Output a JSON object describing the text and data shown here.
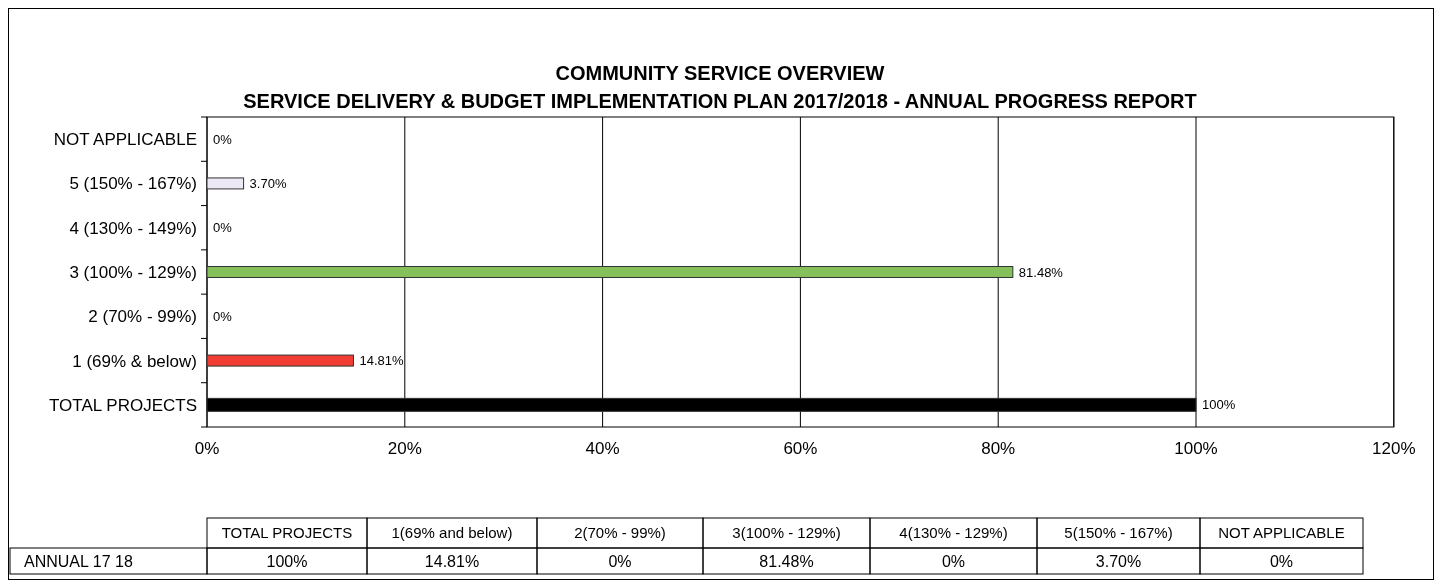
{
  "chart_data": {
    "type": "bar",
    "orientation": "horizontal",
    "title": "COMMUNITY SERVICE OVERVIEW\nSERVICE DELIVERY & BUDGET IMPLEMENTATION PLAN 2017/2018 - ANNUAL PROGRESS REPORT",
    "categories": [
      "NOT APPLICABLE",
      "5 (150% - 167%)",
      "4 (130% - 149%)",
      "3 (100% - 129%)",
      "2 (70% - 99%)",
      "1 (69% & below)",
      "TOTAL PROJECTS"
    ],
    "values": [
      0,
      3.7,
      0,
      81.48,
      0,
      14.81,
      100
    ],
    "colors": [
      "#ffffff",
      "#ece8f4",
      "#ffffff",
      "#85c05c",
      "#ffffff",
      "#f03c32",
      "#000000"
    ],
    "value_labels": [
      "0%",
      "3.70%",
      "0%",
      "81.48%",
      "0%",
      "14.81%",
      "100%"
    ],
    "xlim": [
      0,
      120
    ],
    "xticks": [
      {
        "value": 0,
        "label": "0%"
      },
      {
        "value": 20,
        "label": "20%"
      },
      {
        "value": 40,
        "label": "40%"
      },
      {
        "value": 60,
        "label": "60%"
      },
      {
        "value": 80,
        "label": "80%"
      },
      {
        "value": 100,
        "label": "100%"
      },
      {
        "value": 120,
        "label": "120%"
      }
    ],
    "grid": "x",
    "annotations": [
      "ANNUAL 17 18",
      "TOTAL PROJECTS",
      "1(69% and below)",
      "2(70% - 99%)",
      "3(100% - 129%)",
      "4(130% - 129%)",
      "5(150% - 167%)",
      "NOT APPLICABLE"
    ]
  }
}
